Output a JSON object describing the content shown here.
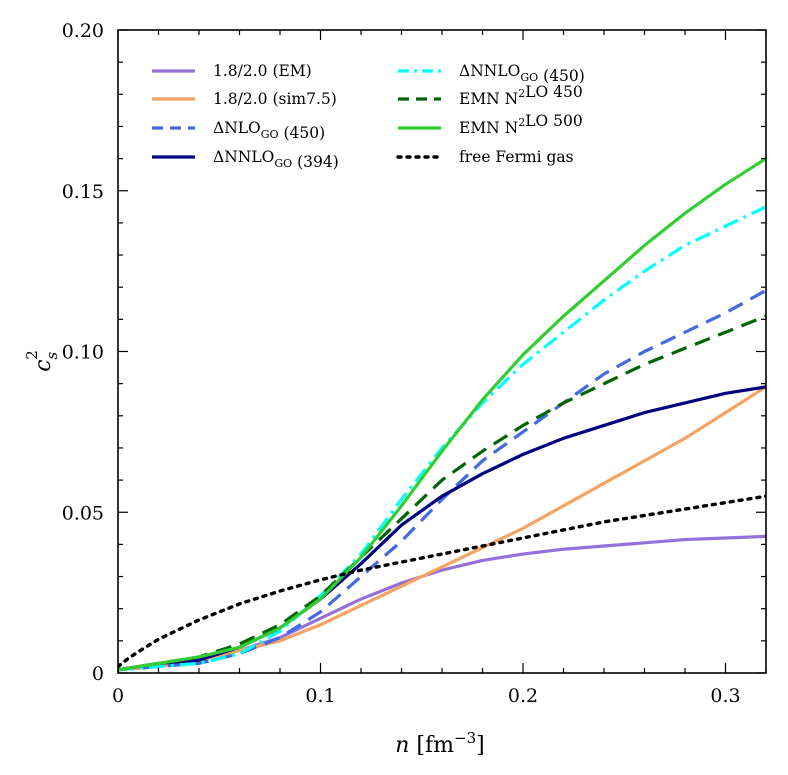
{
  "chart_data": {
    "type": "line",
    "xlabel": {
      "var": "n",
      "unit": "fm",
      "exp": "−3"
    },
    "ylabel": {
      "var": "c",
      "sub": "s",
      "sup": "2"
    },
    "xlim": [
      0,
      0.32
    ],
    "ylim": [
      0,
      0.2
    ],
    "xticks": [
      0,
      0.1,
      0.2,
      0.3
    ],
    "xtick_labels": [
      "0",
      "0.1",
      "0.2",
      "0.3"
    ],
    "yticks": [
      0,
      0.05,
      0.1,
      0.15,
      0.2
    ],
    "ytick_labels": [
      "0",
      "0.05",
      "0.10",
      "0.15",
      "0.20"
    ],
    "grid": false,
    "legend_position": "top-left",
    "series": [
      {
        "name": "1.8/2.0 (EM)",
        "color": "#9370DB",
        "style": "solid",
        "x": [
          0,
          0.02,
          0.04,
          0.06,
          0.08,
          0.1,
          0.12,
          0.14,
          0.16,
          0.18,
          0.2,
          0.22,
          0.24,
          0.26,
          0.28,
          0.3,
          0.32
        ],
        "y": [
          0.001,
          0.002,
          0.004,
          0.007,
          0.011,
          0.017,
          0.023,
          0.028,
          0.032,
          0.035,
          0.037,
          0.0385,
          0.0395,
          0.0405,
          0.0415,
          0.042,
          0.0425
        ]
      },
      {
        "name": "1.8/2.0 (sim7.5)",
        "color": "#F4A460",
        "style": "solid",
        "x": [
          0,
          0.02,
          0.04,
          0.06,
          0.08,
          0.1,
          0.12,
          0.14,
          0.16,
          0.18,
          0.2,
          0.22,
          0.24,
          0.26,
          0.28,
          0.3,
          0.32
        ],
        "y": [
          0.001,
          0.002,
          0.004,
          0.007,
          0.01,
          0.015,
          0.021,
          0.027,
          0.033,
          0.039,
          0.045,
          0.052,
          0.059,
          0.066,
          0.073,
          0.081,
          0.089
        ]
      },
      {
        "name": "ΔNLO_GO (450)",
        "color": "#4169E1",
        "style": "dashed",
        "x": [
          0,
          0.02,
          0.04,
          0.06,
          0.08,
          0.1,
          0.12,
          0.14,
          0.16,
          0.18,
          0.2,
          0.22,
          0.24,
          0.26,
          0.28,
          0.3,
          0.32
        ],
        "y": [
          0.001,
          0.002,
          0.003,
          0.006,
          0.011,
          0.019,
          0.03,
          0.041,
          0.054,
          0.066,
          0.075,
          0.084,
          0.093,
          0.1,
          0.106,
          0.112,
          0.119
        ]
      },
      {
        "name": "ΔNNLO_GO (394)",
        "color": "#000080",
        "style": "solid",
        "x": [
          0,
          0.02,
          0.04,
          0.06,
          0.08,
          0.1,
          0.12,
          0.14,
          0.16,
          0.18,
          0.2,
          0.22,
          0.24,
          0.26,
          0.28,
          0.3,
          0.32
        ],
        "y": [
          0.001,
          0.003,
          0.004,
          0.008,
          0.014,
          0.023,
          0.034,
          0.046,
          0.055,
          0.062,
          0.068,
          0.073,
          0.077,
          0.081,
          0.084,
          0.087,
          0.089
        ]
      },
      {
        "name": "ΔNNLO_GO (450)",
        "color": "#00FFFF",
        "style": "dashdot",
        "x": [
          0,
          0.02,
          0.04,
          0.06,
          0.08,
          0.1,
          0.12,
          0.14,
          0.16,
          0.18,
          0.2,
          0.22,
          0.24,
          0.26,
          0.28,
          0.3,
          0.32
        ],
        "y": [
          0.001,
          0.002,
          0.003,
          0.006,
          0.013,
          0.024,
          0.037,
          0.054,
          0.07,
          0.084,
          0.096,
          0.106,
          0.116,
          0.125,
          0.133,
          0.139,
          0.145
        ]
      },
      {
        "name": "EMN N²LO 450",
        "color": "#006400",
        "style": "dashed",
        "x": [
          0,
          0.02,
          0.04,
          0.06,
          0.08,
          0.1,
          0.12,
          0.14,
          0.16,
          0.18,
          0.2,
          0.22,
          0.24,
          0.26,
          0.28,
          0.3,
          0.32
        ],
        "y": [
          0.001,
          0.003,
          0.005,
          0.009,
          0.015,
          0.024,
          0.036,
          0.048,
          0.06,
          0.069,
          0.077,
          0.084,
          0.09,
          0.096,
          0.101,
          0.106,
          0.111
        ]
      },
      {
        "name": "EMN N²LO 500",
        "color": "#32CD32",
        "style": "solid",
        "x": [
          0,
          0.02,
          0.04,
          0.06,
          0.08,
          0.1,
          0.12,
          0.14,
          0.16,
          0.18,
          0.2,
          0.22,
          0.24,
          0.26,
          0.28,
          0.3,
          0.32
        ],
        "y": [
          0.001,
          0.003,
          0.005,
          0.008,
          0.014,
          0.023,
          0.036,
          0.052,
          0.069,
          0.085,
          0.099,
          0.111,
          0.122,
          0.133,
          0.143,
          0.152,
          0.16
        ]
      },
      {
        "name": "free Fermi gas",
        "color": "#000000",
        "style": "dotted",
        "x": [
          0,
          0.005,
          0.01,
          0.02,
          0.04,
          0.06,
          0.08,
          0.1,
          0.12,
          0.14,
          0.16,
          0.18,
          0.2,
          0.22,
          0.24,
          0.26,
          0.28,
          0.3,
          0.32
        ],
        "y": [
          0.002,
          0.0045,
          0.0066,
          0.0105,
          0.0165,
          0.0215,
          0.0255,
          0.029,
          0.032,
          0.0345,
          0.037,
          0.0395,
          0.042,
          0.0445,
          0.047,
          0.049,
          0.051,
          0.053,
          0.055
        ]
      }
    ],
    "legend_layout": {
      "columns": [
        [
          0,
          1,
          2,
          3
        ],
        [
          4,
          5,
          6,
          7
        ]
      ]
    }
  }
}
